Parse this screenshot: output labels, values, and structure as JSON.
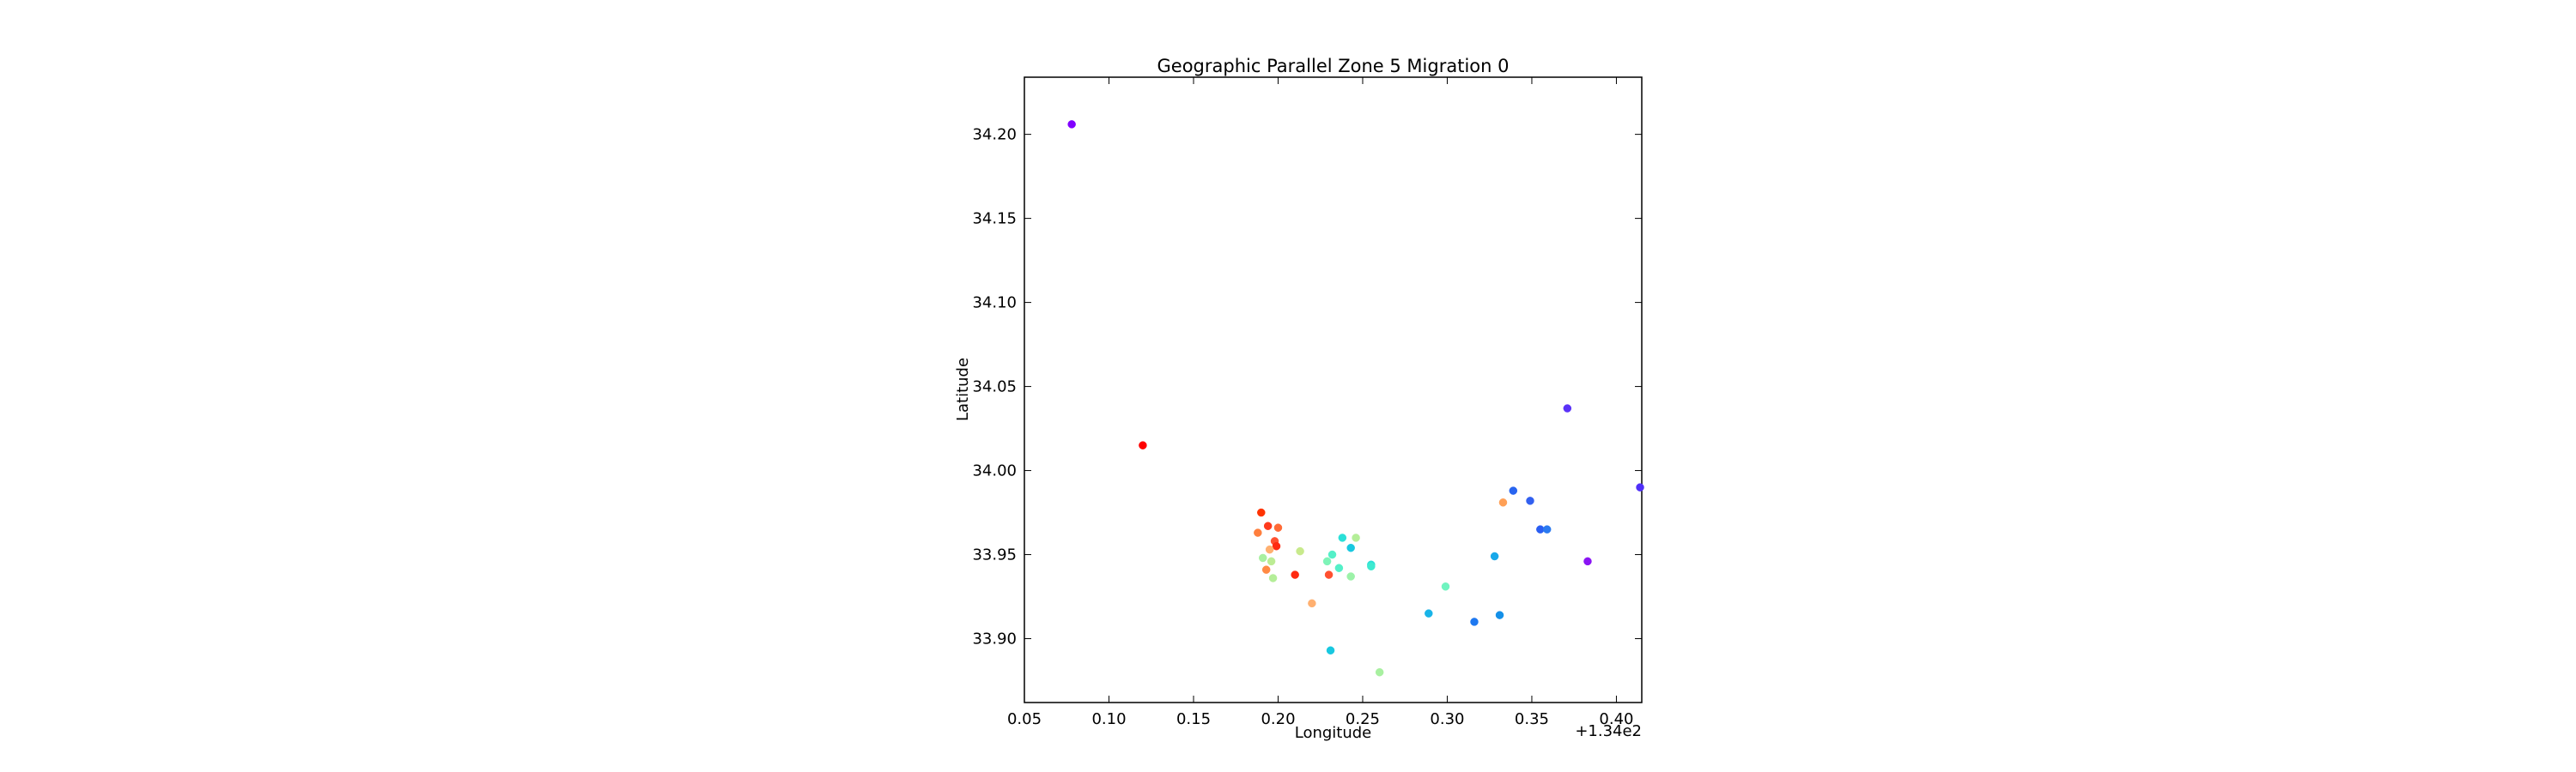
{
  "chart_data": {
    "type": "scatter",
    "title": "Geographic Parallel Zone 5 Migration 0",
    "xlabel": "Longitude",
    "ylabel": "Latitude",
    "x_offset_label": "+1.34e2",
    "xlim": [
      0.05,
      0.415
    ],
    "ylim": [
      33.862,
      34.234
    ],
    "x_ticks": [
      0.05,
      0.1,
      0.15,
      0.2,
      0.25,
      0.3,
      0.35,
      0.4
    ],
    "x_tick_labels": [
      "0.05",
      "0.10",
      "0.15",
      "0.20",
      "0.25",
      "0.30",
      "0.35",
      "0.40"
    ],
    "y_ticks": [
      33.9,
      33.95,
      34.0,
      34.05,
      34.1,
      34.15,
      34.2
    ],
    "y_tick_labels": [
      "33.90",
      "33.95",
      "34.00",
      "34.05",
      "34.10",
      "34.15",
      "34.20"
    ],
    "grid": false,
    "colormap": "rainbow",
    "points": [
      {
        "x": 0.078,
        "y": 34.206,
        "color": "#8000ff"
      },
      {
        "x": 0.12,
        "y": 34.015,
        "color": "#ff0000"
      },
      {
        "x": 0.19,
        "y": 33.975,
        "color": "#ff3300"
      },
      {
        "x": 0.194,
        "y": 33.967,
        "color": "#ff3a1d"
      },
      {
        "x": 0.2,
        "y": 33.966,
        "color": "#ff6a36"
      },
      {
        "x": 0.188,
        "y": 33.963,
        "color": "#ff7f3d"
      },
      {
        "x": 0.198,
        "y": 33.958,
        "color": "#ff5030"
      },
      {
        "x": 0.199,
        "y": 33.955,
        "color": "#ff2a10"
      },
      {
        "x": 0.195,
        "y": 33.953,
        "color": "#ffb070"
      },
      {
        "x": 0.213,
        "y": 33.952,
        "color": "#c8ea8c"
      },
      {
        "x": 0.191,
        "y": 33.948,
        "color": "#a8f0a0"
      },
      {
        "x": 0.196,
        "y": 33.946,
        "color": "#bcec94"
      },
      {
        "x": 0.193,
        "y": 33.941,
        "color": "#ff8a44"
      },
      {
        "x": 0.197,
        "y": 33.936,
        "color": "#b4ee98"
      },
      {
        "x": 0.21,
        "y": 33.938,
        "color": "#ff2a10"
      },
      {
        "x": 0.22,
        "y": 33.921,
        "color": "#ffb070"
      },
      {
        "x": 0.23,
        "y": 33.938,
        "color": "#ff5030"
      },
      {
        "x": 0.231,
        "y": 33.893,
        "color": "#18c8e0"
      },
      {
        "x": 0.238,
        "y": 33.96,
        "color": "#2ae0d8"
      },
      {
        "x": 0.246,
        "y": 33.96,
        "color": "#b4ee98"
      },
      {
        "x": 0.243,
        "y": 33.954,
        "color": "#18c8e0"
      },
      {
        "x": 0.232,
        "y": 33.95,
        "color": "#54f0c8"
      },
      {
        "x": 0.229,
        "y": 33.946,
        "color": "#7ef4b8"
      },
      {
        "x": 0.236,
        "y": 33.942,
        "color": "#54f0c8"
      },
      {
        "x": 0.243,
        "y": 33.937,
        "color": "#9cf2a8"
      },
      {
        "x": 0.255,
        "y": 33.944,
        "color": "#2ae0d8"
      },
      {
        "x": 0.255,
        "y": 33.943,
        "color": "#3eead0"
      },
      {
        "x": 0.26,
        "y": 33.88,
        "color": "#a8f0a0"
      },
      {
        "x": 0.289,
        "y": 33.915,
        "color": "#18b4e8"
      },
      {
        "x": 0.299,
        "y": 33.931,
        "color": "#70f4c0"
      },
      {
        "x": 0.316,
        "y": 33.91,
        "color": "#1e78f0"
      },
      {
        "x": 0.331,
        "y": 33.914,
        "color": "#1490e8"
      },
      {
        "x": 0.328,
        "y": 33.949,
        "color": "#18a8ea"
      },
      {
        "x": 0.333,
        "y": 33.981,
        "color": "#ffa056"
      },
      {
        "x": 0.339,
        "y": 33.988,
        "color": "#2864f0"
      },
      {
        "x": 0.349,
        "y": 33.982,
        "color": "#3260f0"
      },
      {
        "x": 0.355,
        "y": 33.965,
        "color": "#2a5ef2"
      },
      {
        "x": 0.359,
        "y": 33.965,
        "color": "#2a7af0"
      },
      {
        "x": 0.371,
        "y": 34.037,
        "color": "#5a32f8"
      },
      {
        "x": 0.383,
        "y": 33.946,
        "color": "#8a14f4"
      },
      {
        "x": 0.414,
        "y": 33.99,
        "color": "#5030f8"
      }
    ]
  }
}
